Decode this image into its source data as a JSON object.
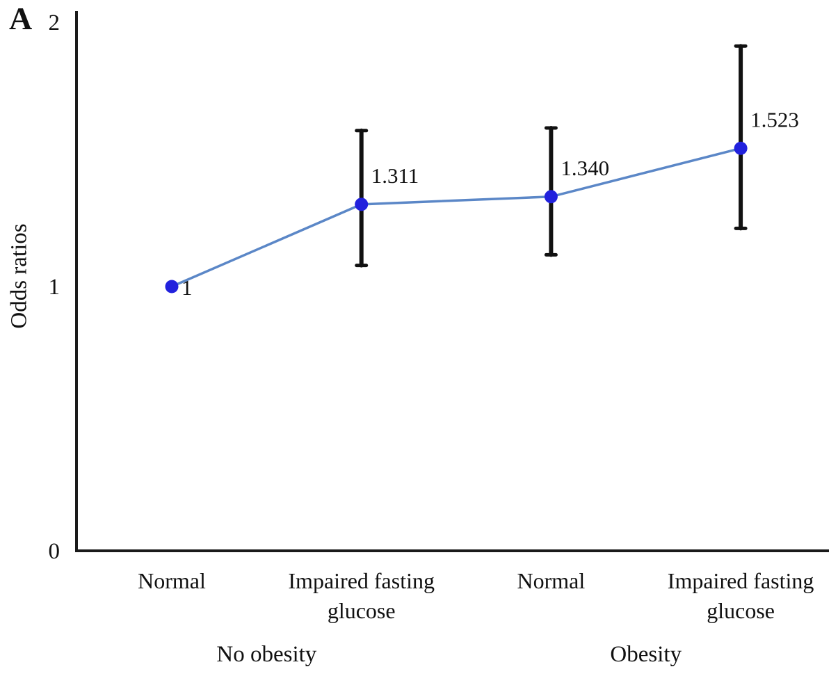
{
  "chart_data": {
    "type": "line",
    "panel_label": "A",
    "title": "",
    "xlabel": "",
    "ylabel": "Odds ratios",
    "ylim": [
      0,
      2
    ],
    "yticks": [
      "0",
      "1",
      "2"
    ],
    "ytick_values": [
      0,
      1,
      2
    ],
    "grid": false,
    "legend_position": "none",
    "categories": [
      "Normal",
      "Impaired fasting\nglucose",
      "Normal",
      "Impaired fasting\nglucose"
    ],
    "groups": [
      {
        "label": "No obesity",
        "span": [
          0,
          1
        ]
      },
      {
        "label": "Obesity",
        "span": [
          2,
          3
        ]
      }
    ],
    "series": [
      {
        "name": "Odds ratio",
        "values": [
          1.0,
          1.311,
          1.34,
          1.523
        ],
        "point_labels": [
          "1",
          "1.311",
          "1.340",
          "1.523"
        ],
        "ci_low": [
          null,
          1.08,
          1.12,
          1.22
        ],
        "ci_high": [
          null,
          1.59,
          1.6,
          1.91
        ]
      }
    ],
    "colors": {
      "line": "#5b87c7",
      "marker": "#2121dd",
      "error_bar": "#111111",
      "axis": "#1a1a1a",
      "text": "#111111"
    }
  }
}
